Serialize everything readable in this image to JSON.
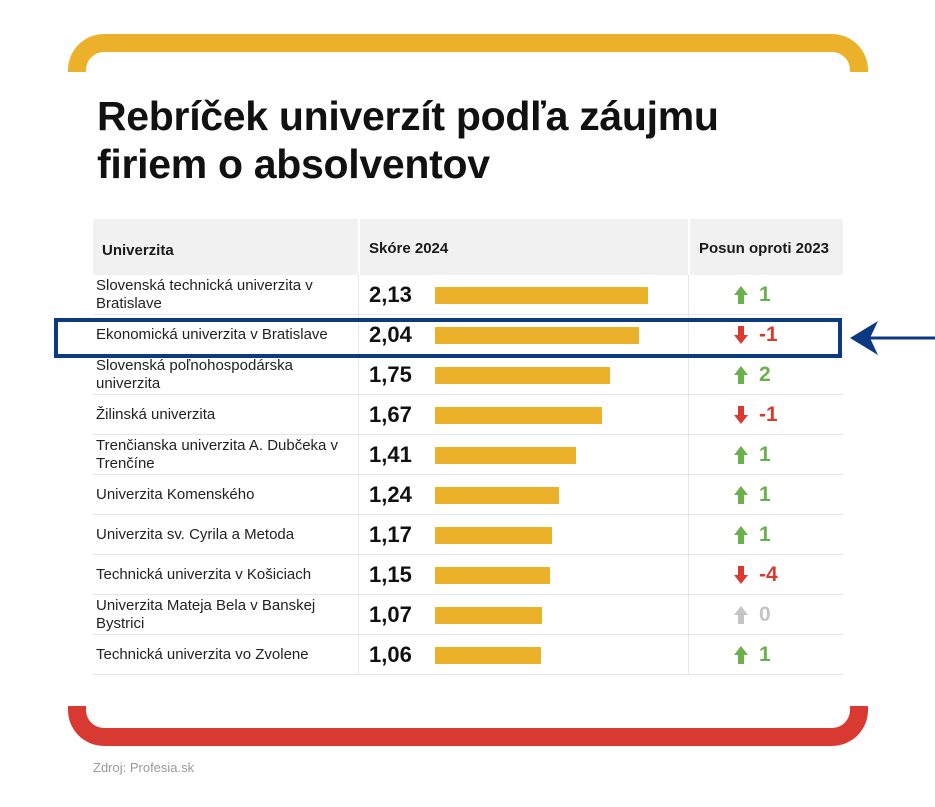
{
  "title": "Rebríček univerzít podľa záujmu firiem o absolventov",
  "source": "Zdroj: Profesia.sk",
  "colors": {
    "bar": "#ecb12a",
    "up": "#6ab04c",
    "down": "#d83a31",
    "zero": "#c4c4c4",
    "highlight": "#0b3a82"
  },
  "chart_data": {
    "type": "table",
    "columns": [
      "Univerzita",
      "Skóre 2024",
      "Posun oproti 2023"
    ],
    "bar_max": 2.13,
    "rows": [
      {
        "name": "Slovenská technická univerzita v Bratislave",
        "score": 2.13,
        "score_label": "2,13",
        "change": 1,
        "change_label": "1",
        "direction": "up"
      },
      {
        "name": "Ekonomická univerzita v Bratislave",
        "score": 2.04,
        "score_label": "2,04",
        "change": -1,
        "change_label": "-1",
        "direction": "down",
        "highlighted": true
      },
      {
        "name": "Slovenská poľnohospodárska univerzita",
        "score": 1.75,
        "score_label": "1,75",
        "change": 2,
        "change_label": "2",
        "direction": "up"
      },
      {
        "name": "Žilinská univerzita",
        "score": 1.67,
        "score_label": "1,67",
        "change": -1,
        "change_label": "-1",
        "direction": "down"
      },
      {
        "name": "Trenčianska univerzita A. Dubčeka v Trenčíne",
        "score": 1.41,
        "score_label": "1,41",
        "change": 1,
        "change_label": "1",
        "direction": "up"
      },
      {
        "name": "Univerzita Komenského",
        "score": 1.24,
        "score_label": "1,24",
        "change": 1,
        "change_label": "1",
        "direction": "up"
      },
      {
        "name": "Univerzita sv. Cyrila a Metoda",
        "score": 1.17,
        "score_label": "1,17",
        "change": 1,
        "change_label": "1",
        "direction": "up"
      },
      {
        "name": "Technická univerzita v Košiciach",
        "score": 1.15,
        "score_label": "1,15",
        "change": -4,
        "change_label": "-4",
        "direction": "down"
      },
      {
        "name": "Univerzita Mateja Bela v Banskej Bystrici",
        "score": 1.07,
        "score_label": "1,07",
        "change": 0,
        "change_label": "0",
        "direction": "zero"
      },
      {
        "name": "Technická univerzita vo Zvolene",
        "score": 1.06,
        "score_label": "1,06",
        "change": 1,
        "change_label": "1",
        "direction": "up"
      }
    ]
  }
}
